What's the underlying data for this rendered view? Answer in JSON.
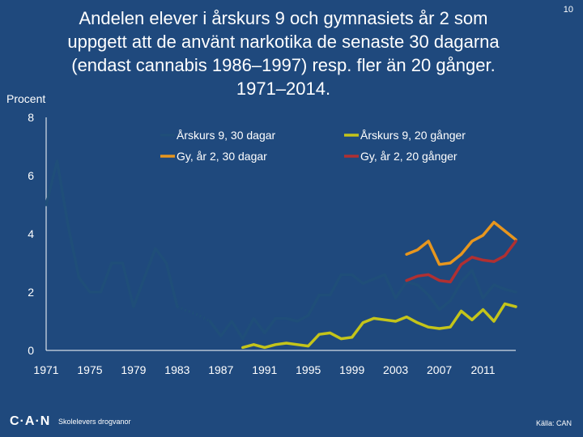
{
  "slide_number": "10",
  "footer": {
    "logo": "C·A·N",
    "subtitle": "Skolelevers drogvanor",
    "source": "Källa: CAN"
  },
  "chart_data": {
    "type": "line",
    "title_lines": [
      "Andelen elever i årskurs 9 och gymnasiets år 2 som",
      "uppgett att de använt narkotika de senaste 30 dagarna",
      "(endast cannabis 1986–1997) resp. fler än 20 gånger.",
      "1971–2014."
    ],
    "ylabel": "Procent",
    "ylim": [
      0,
      8
    ],
    "xlim": [
      1971,
      2014
    ],
    "y_ticks": [
      0,
      2,
      4,
      6,
      8
    ],
    "x_ticks": [
      1971,
      1975,
      1979,
      1983,
      1987,
      1991,
      1995,
      1999,
      2003,
      2007,
      2011
    ],
    "legend": [
      "Årskurs 9, 30 dagar",
      "Årskurs 9, 20 gånger",
      "Gy, år 2, 30 dagar",
      "Gy, år 2, 20 gånger"
    ],
    "series": [
      {
        "name": "Årskurs 9, 30 dagar",
        "color": "#1f4e79",
        "segments": [
          {
            "style": "solid",
            "x": [
              1971,
              1972,
              1973,
              1974,
              1975,
              1976,
              1977,
              1978,
              1979,
              1980,
              1981,
              1982,
              1983
            ],
            "y": [
              5.0,
              6.5,
              4.3,
              2.5,
              2.0,
              2.0,
              3.0,
              3.0,
              1.5,
              2.5,
              3.5,
              3.0,
              1.5
            ]
          },
          {
            "style": "dotted",
            "x": [
              1983,
              1984,
              1985,
              1986
            ],
            "y": [
              1.5,
              1.35,
              1.2,
              1.0
            ]
          },
          {
            "style": "solid",
            "x": [
              1986,
              1987,
              1988,
              1989,
              1990,
              1991,
              1992,
              1993,
              1994,
              1995,
              1996,
              1997,
              1998,
              1999,
              2000,
              2001,
              2002,
              2003,
              2004,
              2005,
              2006,
              2007,
              2008,
              2009,
              2010,
              2011,
              2012,
              2013,
              2014
            ],
            "y": [
              1.0,
              0.5,
              1.0,
              0.4,
              1.1,
              0.6,
              1.1,
              1.1,
              1.0,
              1.2,
              1.9,
              1.9,
              2.6,
              2.6,
              2.3,
              2.45,
              2.6,
              1.8,
              2.35,
              2.25,
              1.9,
              1.4,
              1.7,
              2.35,
              2.75,
              1.8,
              2.25,
              2.1,
              2.0
            ]
          }
        ]
      },
      {
        "name": "Årskurs 9, 20 gånger",
        "color": "#c4c41a",
        "segments": [
          {
            "style": "solid",
            "x": [
              1989,
              1990,
              1991,
              1992,
              1993,
              1994,
              1995,
              1996,
              1997,
              1998,
              1999,
              2000,
              2001,
              2002,
              2003,
              2004,
              2005,
              2006,
              2007,
              2008,
              2009,
              2010,
              2011,
              2012,
              2013,
              2014
            ],
            "y": [
              0.1,
              0.2,
              0.1,
              0.2,
              0.25,
              0.2,
              0.15,
              0.55,
              0.6,
              0.4,
              0.45,
              0.95,
              1.1,
              1.05,
              1.0,
              1.15,
              0.95,
              0.8,
              0.75,
              0.8,
              1.35,
              1.05,
              1.4,
              1.0,
              1.6,
              1.5
            ]
          }
        ]
      },
      {
        "name": "Gy, år 2, 30 dagar",
        "color": "#e7961e",
        "segments": [
          {
            "style": "solid",
            "x": [
              2004,
              2005,
              2006,
              2007,
              2008,
              2009,
              2010,
              2011,
              2012,
              2013,
              2014
            ],
            "y": [
              3.3,
              3.45,
              3.75,
              2.95,
              3.0,
              3.3,
              3.75,
              3.95,
              4.4,
              4.1,
              3.8
            ]
          }
        ]
      },
      {
        "name": "Gy, år 2, 20 gånger",
        "color": "#b03032",
        "segments": [
          {
            "style": "solid",
            "x": [
              2004,
              2005,
              2006,
              2007,
              2008,
              2009,
              2010,
              2011,
              2012,
              2013,
              2014
            ],
            "y": [
              2.4,
              2.55,
              2.6,
              2.4,
              2.35,
              2.95,
              3.2,
              3.1,
              3.05,
              3.25,
              3.75
            ]
          }
        ]
      }
    ]
  }
}
